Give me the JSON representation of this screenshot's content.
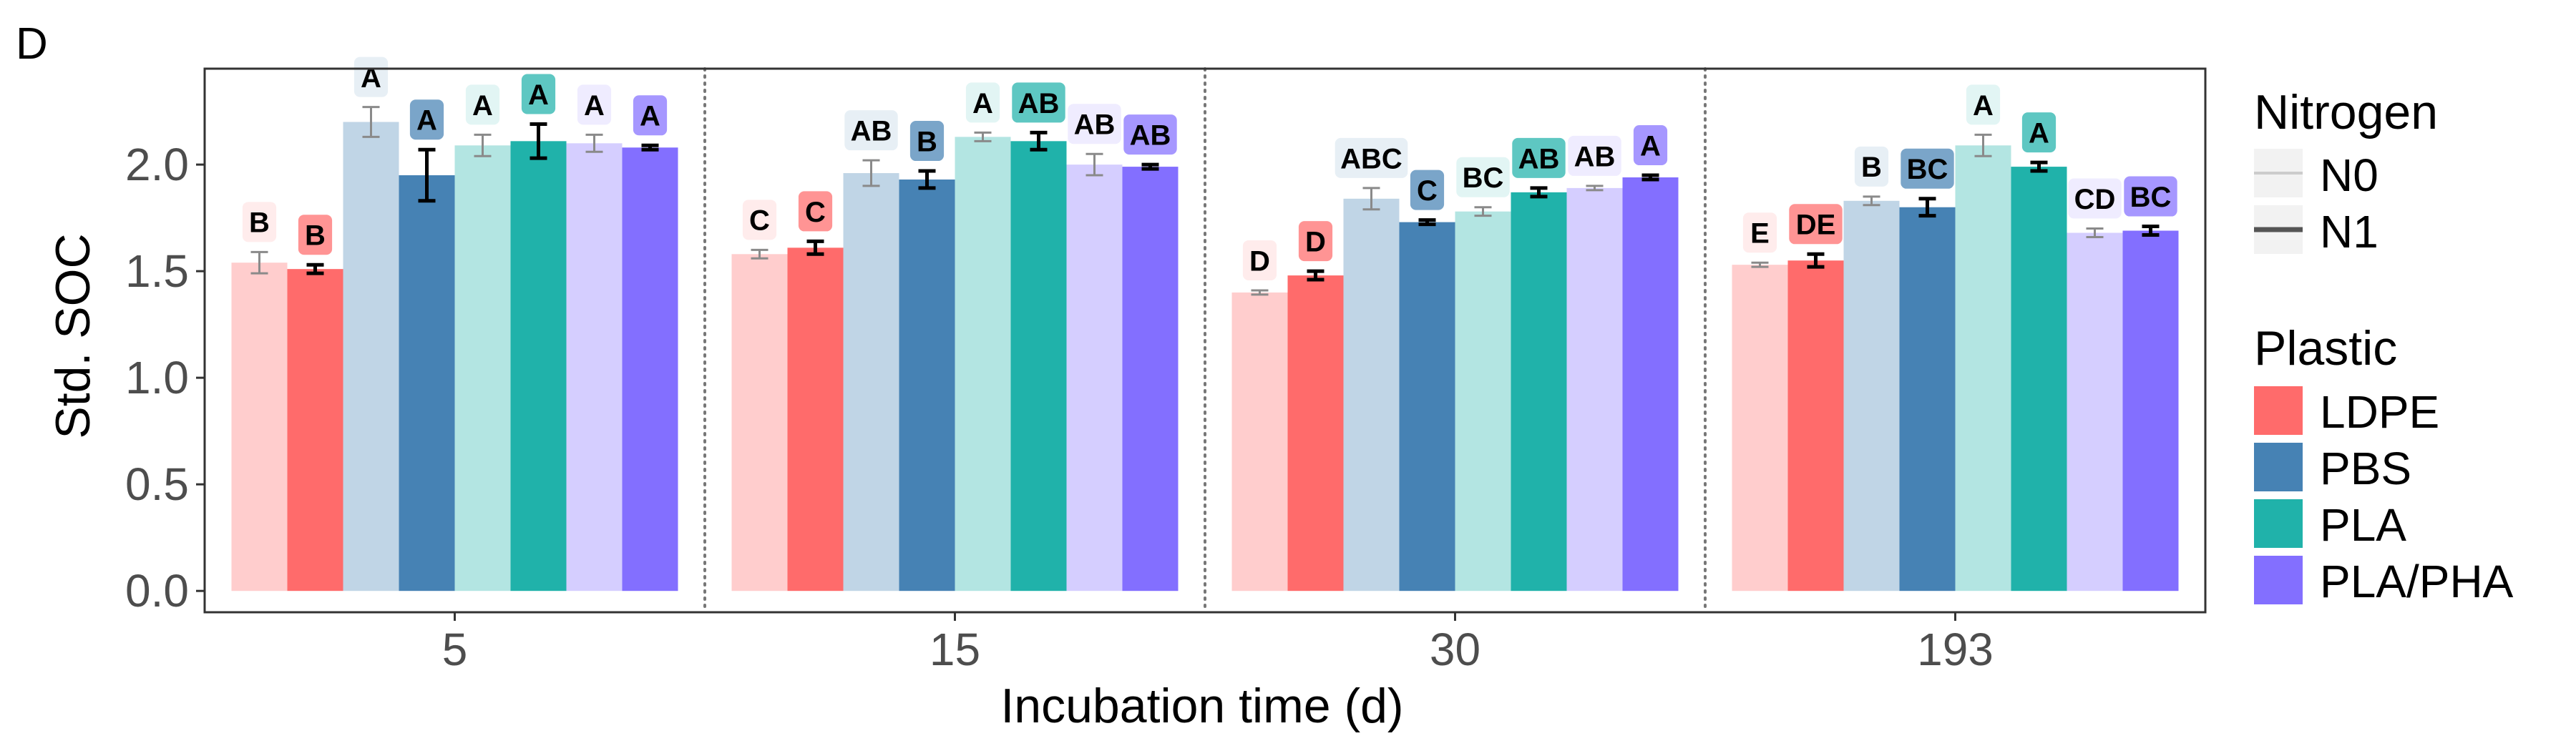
{
  "panel_label": "D",
  "colors": {
    "LDPE": "#FF6B6B",
    "PBS": "#4682B4",
    "PLA": "#20B2AA",
    "PLA/PHA": "#836FFF",
    "grid_divider": "#777777",
    "axis_text": "#4D4D4D"
  },
  "legend": {
    "nitrogen_title": "Nitrogen",
    "nitrogen_items": [
      "N0",
      "N1"
    ],
    "plastic_title": "Plastic",
    "plastic_items": [
      "LDPE",
      "PBS",
      "PLA",
      "PLA/PHA"
    ]
  },
  "chart_data": {
    "type": "bar",
    "xlabel": "Incubation time (d)",
    "ylabel": "Std. SOC",
    "ylim": [
      -0.1,
      2.45
    ],
    "yticks": [
      "0.0",
      "0.5",
      "1.0",
      "1.5",
      "2.0"
    ],
    "categories": [
      "5",
      "15",
      "30",
      "193"
    ],
    "series": [
      {
        "plastic": "LDPE",
        "nitrogen": "N0",
        "values": [
          1.54,
          1.58,
          1.4,
          1.53
        ],
        "errors": [
          0.05,
          0.02,
          0.01,
          0.01
        ],
        "letters": [
          "B",
          "C",
          "D",
          "E"
        ]
      },
      {
        "plastic": "LDPE",
        "nitrogen": "N1",
        "values": [
          1.51,
          1.61,
          1.48,
          1.55
        ],
        "errors": [
          0.02,
          0.03,
          0.02,
          0.03
        ],
        "letters": [
          "B",
          "C",
          "D",
          "DE"
        ]
      },
      {
        "plastic": "PBS",
        "nitrogen": "N0",
        "values": [
          2.2,
          1.96,
          1.84,
          1.83
        ],
        "errors": [
          0.07,
          0.06,
          0.05,
          0.02
        ],
        "letters": [
          "A",
          "AB",
          "ABC",
          "B"
        ]
      },
      {
        "plastic": "PBS",
        "nitrogen": "N1",
        "values": [
          1.95,
          1.93,
          1.73,
          1.8
        ],
        "errors": [
          0.12,
          0.04,
          0.01,
          0.04
        ],
        "letters": [
          "A",
          "B",
          "C",
          "BC"
        ]
      },
      {
        "plastic": "PLA",
        "nitrogen": "N0",
        "values": [
          2.09,
          2.13,
          1.78,
          2.09
        ],
        "errors": [
          0.05,
          0.02,
          0.02,
          0.05
        ],
        "letters": [
          "A",
          "A",
          "BC",
          "A"
        ]
      },
      {
        "plastic": "PLA",
        "nitrogen": "N1",
        "values": [
          2.11,
          2.11,
          1.87,
          1.99
        ],
        "errors": [
          0.08,
          0.04,
          0.02,
          0.02
        ],
        "letters": [
          "A",
          "AB",
          "AB",
          "A"
        ]
      },
      {
        "plastic": "PLA/PHA",
        "nitrogen": "N0",
        "values": [
          2.1,
          2.0,
          1.89,
          1.68
        ],
        "errors": [
          0.04,
          0.05,
          0.01,
          0.02
        ],
        "letters": [
          "A",
          "AB",
          "AB",
          "CD"
        ]
      },
      {
        "plastic": "PLA/PHA",
        "nitrogen": "N1",
        "values": [
          2.08,
          1.99,
          1.94,
          1.69
        ],
        "errors": [
          0.01,
          0.01,
          0.01,
          0.02
        ],
        "letters": [
          "A",
          "AB",
          "A",
          "BC"
        ]
      }
    ]
  }
}
